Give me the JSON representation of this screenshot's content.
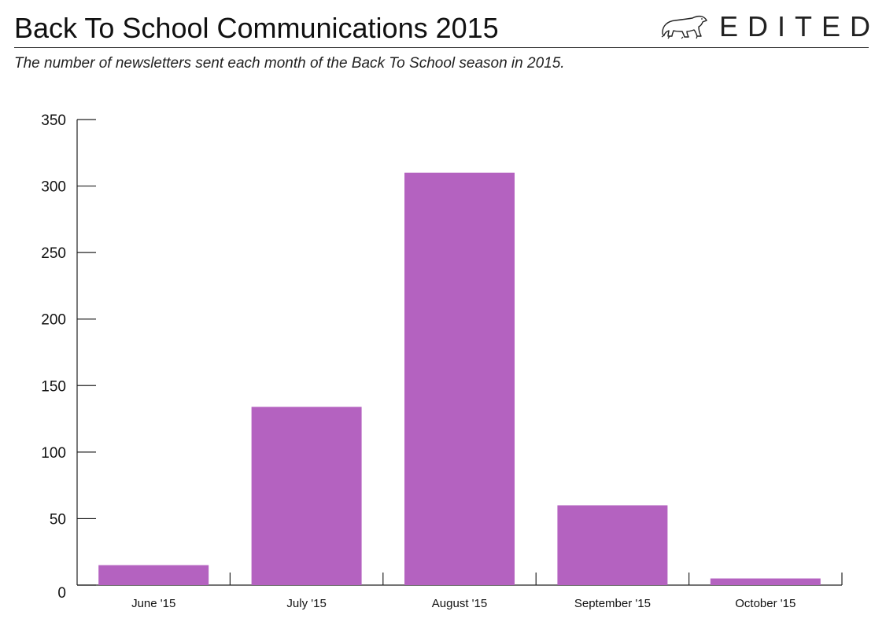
{
  "header": {
    "title": "Back To School Communications 2015",
    "subtitle": "The number of newsletters sent each month of the Back To School season in 2015.",
    "brand": "EDITED",
    "brand_icon": "polar-bear-icon"
  },
  "colors": {
    "bar": "#b462c0",
    "axis": "#222222",
    "rule": "#333333"
  },
  "chart_data": {
    "type": "bar",
    "title": "Back To School Communications 2015",
    "subtitle": "The number of newsletters sent each month of the Back To School season in 2015.",
    "categories": [
      "June '15",
      "July '15",
      "August '15",
      "September '15",
      "October '15"
    ],
    "values": [
      15,
      134,
      310,
      60,
      5
    ],
    "xlabel": "",
    "ylabel": "",
    "ylim": [
      0,
      350
    ],
    "yticks": [
      0,
      50,
      100,
      150,
      200,
      250,
      300,
      350
    ],
    "grid": false,
    "legend": "none"
  }
}
